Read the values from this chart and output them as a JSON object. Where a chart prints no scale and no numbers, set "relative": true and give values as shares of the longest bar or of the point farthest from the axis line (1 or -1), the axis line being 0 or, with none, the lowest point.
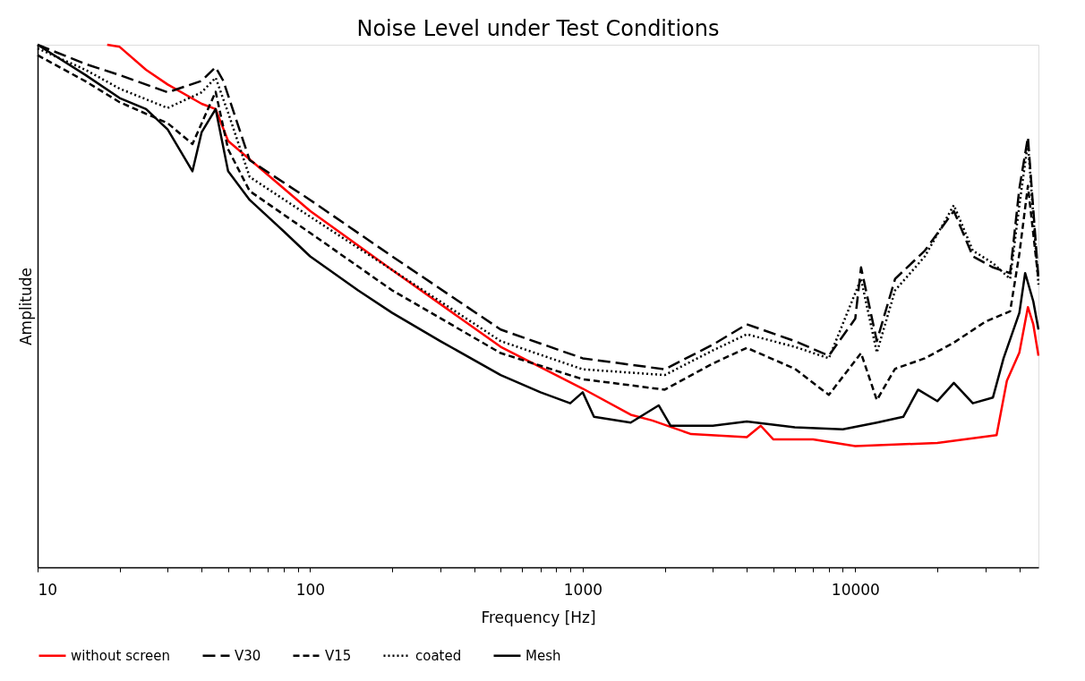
{
  "chart_data": {
    "type": "line",
    "title": "Noise Level under Test Conditions",
    "xlabel": "Frequency [Hz]",
    "ylabel": "Amplitude",
    "relative": true,
    "log": "x",
    "legend": "bottom",
    "xlim": [
      10,
      47000
    ],
    "xticks": [
      10,
      {
        "value": 20,
        "label": null
      },
      {
        "value": 30,
        "label": null
      },
      {
        "value": 40,
        "label": null
      },
      {
        "value": 50,
        "label": null
      },
      {
        "value": 60,
        "label": null
      },
      {
        "value": 70,
        "label": null
      },
      {
        "value": 80,
        "label": null
      },
      {
        "value": 90,
        "label": null
      },
      100,
      {
        "value": 200,
        "label": null
      },
      {
        "value": 300,
        "label": null
      },
      {
        "value": 400,
        "label": null
      },
      {
        "value": 500,
        "label": null
      },
      {
        "value": 600,
        "label": null
      },
      {
        "value": 700,
        "label": null
      },
      {
        "value": 800,
        "label": null
      },
      {
        "value": 900,
        "label": null
      },
      1000,
      {
        "value": 2000,
        "label": null
      },
      {
        "value": 3000,
        "label": null
      },
      {
        "value": 4000,
        "label": null
      },
      {
        "value": 5000,
        "label": null
      },
      {
        "value": 6000,
        "label": null
      },
      {
        "value": 7000,
        "label": null
      },
      {
        "value": 8000,
        "label": null
      },
      {
        "value": 9000,
        "label": null
      },
      10000,
      {
        "value": 20000,
        "label": null
      },
      {
        "value": 30000,
        "label": null
      },
      {
        "value": 40000,
        "label": null
      }
    ],
    "series": [
      {
        "name": "without screen",
        "color": "#ff0000",
        "line_style": "solid",
        "x": [
          18,
          20,
          25,
          30,
          40,
          45,
          50,
          100,
          200,
          500,
          1000,
          1500,
          1800,
          2500,
          4000,
          4500,
          5000,
          7000,
          10000,
          20000,
          33000,
          36000,
          40000,
          43000,
          45000,
          47000
        ],
        "values": [
          1.0,
          0.996,
          0.952,
          0.924,
          0.887,
          0.877,
          0.816,
          0.682,
          0.569,
          0.422,
          0.342,
          0.292,
          0.281,
          0.255,
          0.249,
          0.271,
          0.245,
          0.245,
          0.232,
          0.238,
          0.253,
          0.357,
          0.411,
          0.498,
          0.465,
          0.405
        ]
      },
      {
        "name": "V30",
        "color": "#000000",
        "line_style": "dashed",
        "x": [
          10,
          15,
          20,
          30,
          40,
          45,
          48,
          60,
          100,
          200,
          500,
          1000,
          2000,
          3000,
          4000,
          6000,
          8000,
          10000,
          10500,
          12000,
          14000,
          18000,
          23000,
          27000,
          32000,
          37000,
          40000,
          43000,
          47000
        ],
        "values": [
          1.0,
          0.963,
          0.942,
          0.909,
          0.931,
          0.957,
          0.931,
          0.779,
          0.703,
          0.595,
          0.455,
          0.4,
          0.379,
          0.426,
          0.465,
          0.433,
          0.405,
          0.476,
          0.574,
          0.433,
          0.552,
          0.606,
          0.682,
          0.595,
          0.574,
          0.563,
          0.725,
          0.823,
          0.552
        ]
      },
      {
        "name": "V15",
        "color": "#000000",
        "line_style": "dashed",
        "x": [
          10,
          15,
          20,
          30,
          37,
          45,
          50,
          60,
          100,
          200,
          500,
          1000,
          2000,
          3000,
          4000,
          6000,
          8000,
          10500,
          12000,
          14000,
          18000,
          23000,
          30000,
          37000,
          40000,
          43000,
          47000
        ],
        "values": [
          0.98,
          0.93,
          0.89,
          0.85,
          0.81,
          0.91,
          0.8,
          0.72,
          0.64,
          0.53,
          0.41,
          0.36,
          0.34,
          0.39,
          0.42,
          0.38,
          0.33,
          0.41,
          0.32,
          0.38,
          0.4,
          0.43,
          0.47,
          0.49,
          0.6,
          0.73,
          0.55
        ]
      },
      {
        "name": "coated",
        "color": "#000000",
        "line_style": "dotted",
        "x": [
          10,
          15,
          20,
          30,
          40,
          45,
          50,
          60,
          100,
          200,
          500,
          1000,
          2000,
          3000,
          4000,
          6000,
          8000,
          10500,
          12000,
          14000,
          18000,
          23000,
          27000,
          32000,
          37000,
          40000,
          43000,
          47000
        ],
        "values": [
          0.993,
          0.952,
          0.916,
          0.879,
          0.909,
          0.937,
          0.87,
          0.747,
          0.671,
          0.569,
          0.433,
          0.379,
          0.368,
          0.415,
          0.446,
          0.422,
          0.4,
          0.552,
          0.411,
          0.53,
          0.595,
          0.693,
          0.606,
          0.582,
          0.552,
          0.693,
          0.812,
          0.541
        ]
      },
      {
        "name": "Mesh",
        "color": "#000000",
        "line_style": "solid",
        "x": [
          10,
          12,
          15,
          20,
          25,
          30,
          37,
          40,
          45,
          50,
          60,
          80,
          100,
          150,
          200,
          300,
          500,
          700,
          900,
          1000,
          1100,
          1500,
          1900,
          2100,
          3000,
          4000,
          6000,
          9000,
          12000,
          15000,
          17000,
          20000,
          23000,
          27000,
          32000,
          35000,
          40000,
          42000,
          45000,
          47000
        ],
        "values": [
          1.0,
          0.974,
          0.942,
          0.898,
          0.877,
          0.838,
          0.758,
          0.833,
          0.877,
          0.758,
          0.703,
          0.643,
          0.595,
          0.53,
          0.487,
          0.433,
          0.368,
          0.335,
          0.314,
          0.335,
          0.288,
          0.277,
          0.31,
          0.271,
          0.271,
          0.279,
          0.268,
          0.264,
          0.277,
          0.288,
          0.34,
          0.318,
          0.353,
          0.314,
          0.325,
          0.4,
          0.487,
          0.563,
          0.509,
          0.455
        ]
      }
    ]
  }
}
